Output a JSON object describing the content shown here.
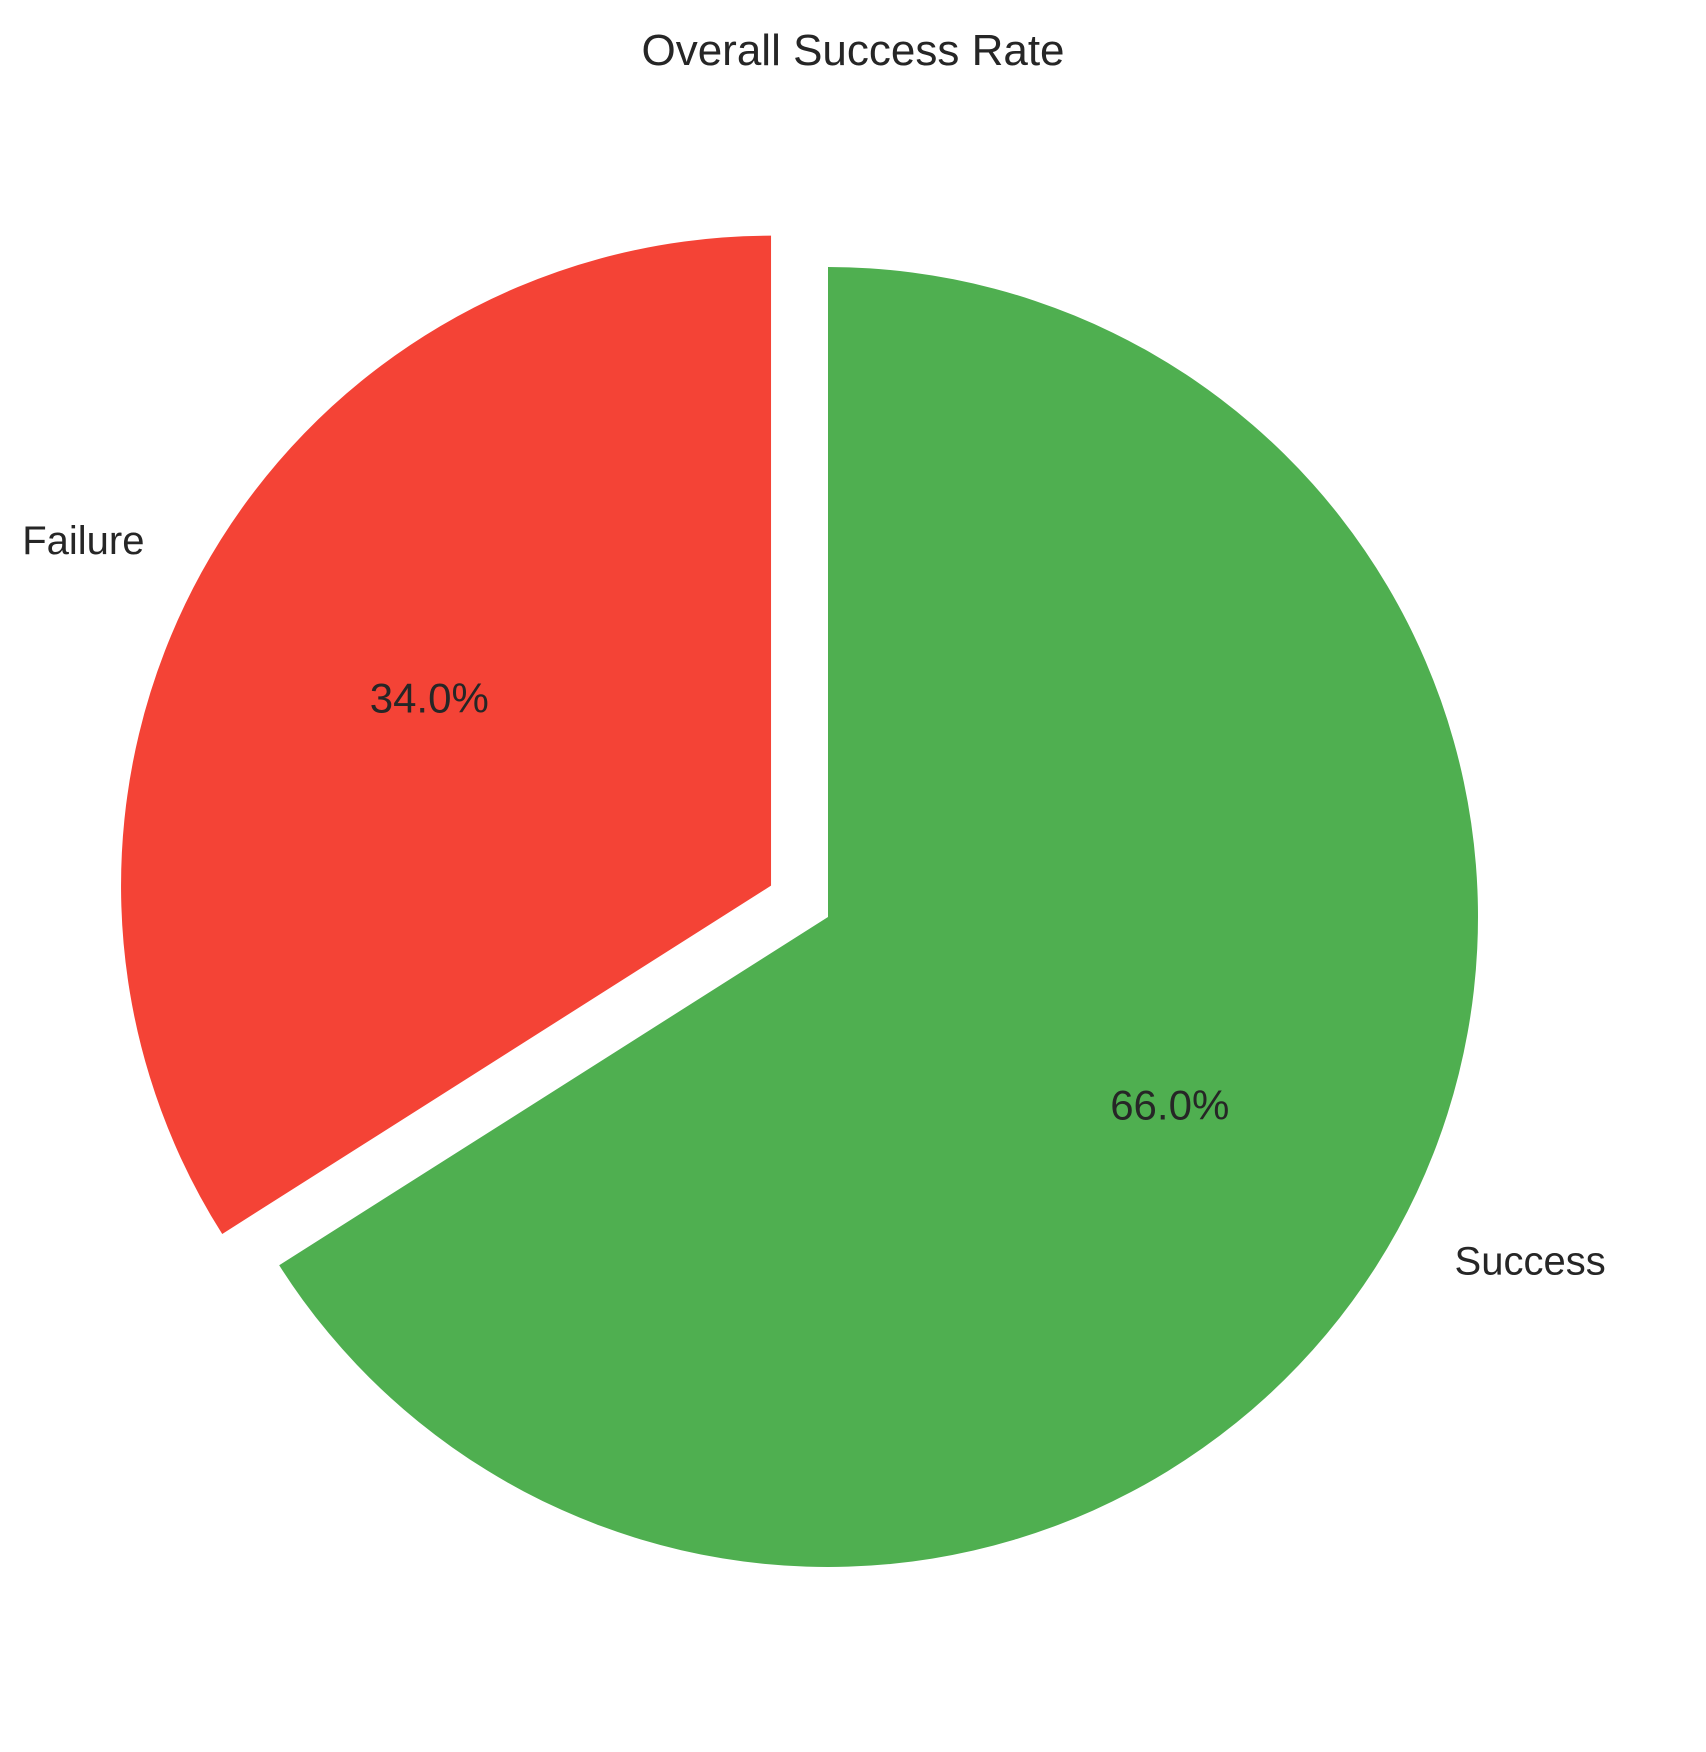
{
  "chart_data": {
    "type": "pie",
    "title": "Overall Success Rate",
    "slices": [
      {
        "label": "Success",
        "value": 66.0,
        "pct_label": "66.0%",
        "color": "#4FAF50",
        "exploded": false
      },
      {
        "label": "Failure",
        "value": 34.0,
        "pct_label": "34.0%",
        "color": "#F44336",
        "exploded": true
      }
    ],
    "start_angle_deg": 90,
    "direction": "clockwise",
    "legend": "none"
  }
}
